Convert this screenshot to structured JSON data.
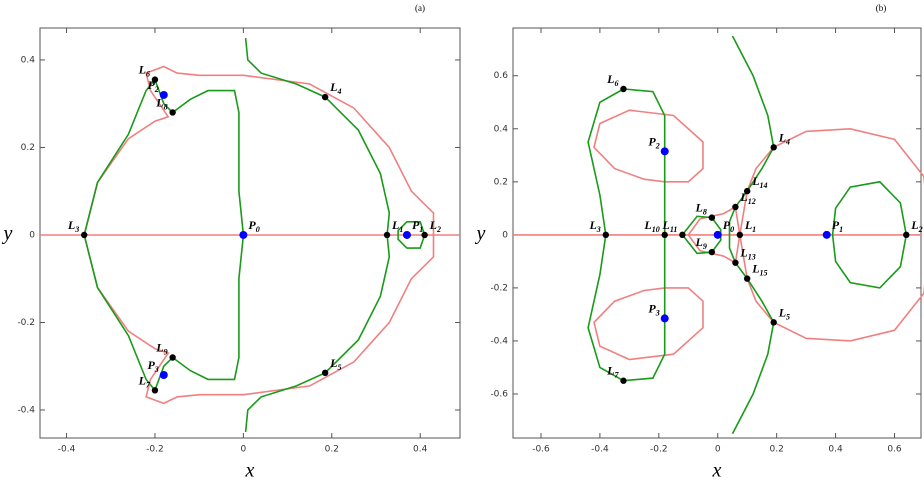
{
  "chart_data": [
    {
      "type": "curves",
      "title": "(a)",
      "x_label": "x",
      "y_label": "y",
      "xlim": [
        -0.46,
        0.49
      ],
      "ylim": [
        -0.464,
        0.473
      ],
      "xticks": [
        -0.4,
        -0.2,
        0.0,
        0.2,
        0.4
      ],
      "yticks": [
        -0.4,
        -0.2,
        0.0,
        0.2,
        0.4
      ],
      "series": [
        {
          "color": "#f08080",
          "x": [
            -0.46,
            0.49
          ],
          "y": [
            0,
            0
          ]
        },
        {
          "color": "#f08080",
          "x": [
            0.43,
            0.43,
            0.38,
            0.33,
            0.25,
            0.15,
            0.0,
            -0.1,
            -0.15,
            -0.18,
            -0.22,
            -0.21,
            -0.17,
            -0.2,
            -0.26,
            -0.33,
            -0.36,
            -0.33,
            -0.26,
            -0.2,
            -0.17,
            -0.21,
            -0.22,
            -0.18,
            -0.15,
            -0.1,
            0.0,
            0.15,
            0.25,
            0.33,
            0.38,
            0.43,
            0.43
          ],
          "y": [
            0.0,
            0.05,
            0.1,
            0.2,
            0.29,
            0.345,
            0.365,
            0.365,
            0.37,
            0.385,
            0.37,
            0.33,
            0.27,
            0.26,
            0.22,
            0.12,
            0.0,
            -0.12,
            -0.22,
            -0.26,
            -0.27,
            -0.33,
            -0.37,
            -0.385,
            -0.37,
            -0.365,
            -0.365,
            -0.345,
            -0.29,
            -0.2,
            -0.1,
            -0.05,
            0.0
          ]
        },
        {
          "color": "#1a9a1a",
          "x": [
            0.005,
            0.01,
            0.04,
            0.12,
            0.185,
            0.26,
            0.31,
            0.33,
            0.325,
            0.33,
            0.31,
            0.26,
            0.185,
            0.12,
            0.04,
            0.01,
            0.005
          ],
          "y": [
            0.45,
            0.4,
            0.37,
            0.345,
            0.315,
            0.24,
            0.14,
            0.05,
            0.0,
            -0.05,
            -0.14,
            -0.24,
            -0.315,
            -0.345,
            -0.37,
            -0.4,
            -0.45
          ]
        },
        {
          "color": "#1a9a1a",
          "x": [
            -0.16,
            -0.12,
            -0.08,
            -0.02,
            -0.01,
            -0.01,
            0.0,
            -0.01,
            -0.01,
            -0.02,
            -0.08,
            -0.12,
            -0.16,
            -0.18,
            -0.2,
            -0.22,
            -0.26,
            -0.33,
            -0.36,
            -0.33,
            -0.26,
            -0.22,
            -0.2,
            -0.18,
            -0.16
          ],
          "y": [
            0.28,
            0.31,
            0.33,
            0.33,
            0.28,
            0.1,
            0.0,
            -0.1,
            -0.28,
            -0.33,
            -0.33,
            -0.31,
            -0.28,
            -0.3,
            -0.355,
            -0.33,
            -0.23,
            -0.12,
            0.0,
            0.12,
            0.23,
            0.33,
            0.355,
            0.3,
            0.28
          ]
        },
        {
          "color": "#1a9a1a",
          "x": [
            0.41,
            0.4,
            0.37,
            0.35,
            0.35,
            0.37,
            0.4,
            0.41
          ],
          "y": [
            0.0,
            0.03,
            0.03,
            0.01,
            -0.01,
            -0.03,
            -0.03,
            0.0
          ]
        }
      ],
      "points": [
        {
          "color": "#000000",
          "labels": [
            "L1",
            "L2",
            "L3",
            "L4",
            "L5",
            "L6",
            "L7",
            "L8",
            "L9"
          ],
          "x": [
            0.325,
            0.41,
            -0.36,
            0.185,
            0.185,
            -0.2,
            -0.2,
            -0.16,
            -0.16
          ],
          "y": [
            0.0,
            0.0,
            0.0,
            0.315,
            -0.315,
            0.355,
            -0.355,
            0.28,
            -0.28
          ]
        },
        {
          "color": "#0000ff",
          "labels": [
            "P0",
            "P1",
            "P2",
            "P3"
          ],
          "x": [
            0.0,
            0.37,
            -0.18,
            -0.18
          ],
          "y": [
            0.0,
            0.0,
            0.32,
            -0.32
          ]
        }
      ]
    },
    {
      "type": "curves",
      "title": "(b)",
      "x_label": "x",
      "y_label": "y",
      "xlim": [
        -0.695,
        0.69
      ],
      "ylim": [
        -0.766,
        0.78
      ],
      "xticks": [
        -0.6,
        -0.4,
        -0.2,
        0.0,
        0.2,
        0.4,
        0.6
      ],
      "yticks": [
        -0.6,
        -0.4,
        -0.2,
        0.0,
        0.2,
        0.4,
        0.6
      ],
      "series": [
        {
          "color": "#f08080",
          "x": [
            -0.695,
            0.69
          ],
          "y": [
            0,
            0
          ]
        },
        {
          "color": "#f08080",
          "x": [
            -0.18,
            -0.1,
            -0.05,
            -0.05,
            -0.15,
            -0.3,
            -0.4,
            -0.42,
            -0.35,
            -0.25,
            -0.18
          ],
          "y": [
            0.2,
            0.2,
            0.25,
            0.35,
            0.45,
            0.47,
            0.42,
            0.33,
            0.25,
            0.21,
            0.2
          ]
        },
        {
          "color": "#f08080",
          "x": [
            -0.18,
            -0.1,
            -0.05,
            -0.05,
            -0.15,
            -0.3,
            -0.4,
            -0.42,
            -0.35,
            -0.25,
            -0.18
          ],
          "y": [
            -0.2,
            -0.2,
            -0.25,
            -0.35,
            -0.45,
            -0.47,
            -0.42,
            -0.33,
            -0.25,
            -0.21,
            -0.2
          ]
        },
        {
          "color": "#f08080",
          "x": [
            0.13,
            0.19,
            0.3,
            0.45,
            0.6,
            0.7,
            0.72,
            0.7,
            0.6,
            0.45,
            0.3,
            0.19,
            0.13,
            0.1,
            0.075,
            0.1,
            0.13
          ],
          "y": [
            0.25,
            0.33,
            0.39,
            0.4,
            0.36,
            0.22,
            0.0,
            -0.22,
            -0.36,
            -0.4,
            -0.39,
            -0.33,
            -0.25,
            -0.165,
            0.0,
            0.165,
            0.25
          ]
        },
        {
          "color": "#f08080",
          "x": [
            -0.1,
            -0.06,
            0.02,
            0.06,
            0.075,
            0.06,
            0.02,
            -0.06,
            -0.1
          ],
          "y": [
            0.0,
            0.06,
            0.08,
            0.105,
            0.0,
            -0.105,
            -0.08,
            -0.06,
            0.0
          ]
        },
        {
          "color": "#1a9a1a",
          "x": [
            -0.32,
            -0.22,
            -0.18,
            -0.18,
            -0.18,
            -0.18,
            -0.18,
            -0.22,
            -0.32,
            -0.4,
            -0.44,
            -0.4,
            -0.38,
            -0.4,
            -0.44,
            -0.4,
            -0.32
          ],
          "y": [
            0.55,
            0.54,
            0.45,
            0.2,
            0.0,
            -0.2,
            -0.45,
            -0.54,
            -0.55,
            -0.5,
            -0.35,
            -0.15,
            0.0,
            0.15,
            0.35,
            0.5,
            0.55
          ]
        },
        {
          "color": "#1a9a1a",
          "x": [
            0.64,
            0.62,
            0.55,
            0.45,
            0.4,
            0.39,
            0.4,
            0.45,
            0.55,
            0.62,
            0.64
          ],
          "y": [
            0.0,
            0.12,
            0.2,
            0.18,
            0.1,
            0.0,
            -0.1,
            -0.18,
            -0.2,
            -0.12,
            0.0
          ]
        },
        {
          "color": "#1a9a1a",
          "x": [
            0.05,
            0.12,
            0.17,
            0.19,
            0.15,
            0.1,
            0.06,
            0.04,
            0.04,
            0.04,
            0.06,
            0.1,
            0.15,
            0.19,
            0.17,
            0.12,
            0.05
          ],
          "y": [
            0.75,
            0.6,
            0.45,
            0.33,
            0.25,
            0.165,
            0.105,
            0.05,
            0.0,
            -0.05,
            -0.105,
            -0.165,
            -0.25,
            -0.33,
            -0.45,
            -0.6,
            -0.75
          ]
        },
        {
          "color": "#1a9a1a",
          "x": [
            -0.12,
            -0.07,
            -0.02,
            0.01,
            0.01,
            -0.02,
            -0.07,
            -0.12
          ],
          "y": [
            0.0,
            0.07,
            0.065,
            0.02,
            -0.02,
            -0.065,
            -0.07,
            0.0
          ]
        }
      ],
      "points": [
        {
          "color": "#000000",
          "labels": [
            "L1",
            "L2",
            "L3",
            "L4",
            "L5",
            "L6",
            "L7",
            "L8",
            "L9",
            "L10",
            "L11",
            "L12",
            "L13",
            "L14",
            "L15"
          ],
          "x": [
            0.075,
            0.64,
            -0.38,
            0.19,
            0.19,
            -0.32,
            -0.32,
            -0.02,
            -0.02,
            -0.18,
            -0.12,
            0.06,
            0.06,
            0.1,
            0.1
          ],
          "y": [
            0.0,
            0.0,
            0.0,
            0.33,
            -0.33,
            0.55,
            -0.55,
            0.065,
            -0.065,
            0.0,
            0.0,
            0.105,
            -0.105,
            0.165,
            -0.165
          ]
        },
        {
          "color": "#0000ff",
          "labels": [
            "P0",
            "P1",
            "P2",
            "P3"
          ],
          "x": [
            0.0,
            0.37,
            -0.18,
            -0.18
          ],
          "y": [
            0.0,
            0.0,
            0.315,
            -0.315
          ]
        }
      ]
    }
  ]
}
